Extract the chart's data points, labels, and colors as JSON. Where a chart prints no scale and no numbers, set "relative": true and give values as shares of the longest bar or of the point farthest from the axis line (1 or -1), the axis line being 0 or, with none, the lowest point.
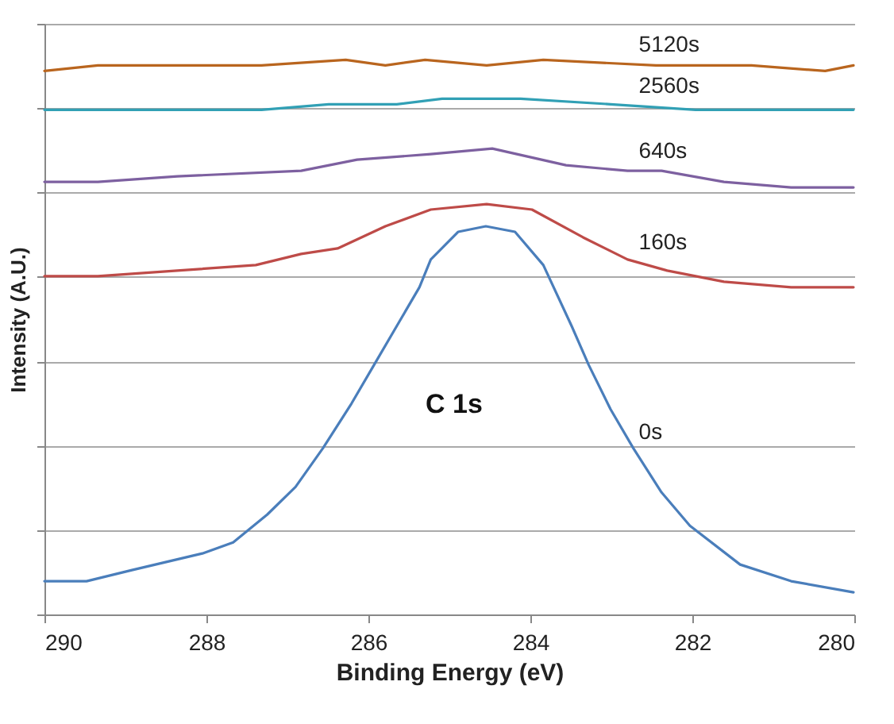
{
  "chart_data": {
    "type": "line",
    "xlabel": "Binding Energy (eV)",
    "ylabel": "Intensity (A.U.)",
    "relative": true,
    "xlim": [
      290,
      280
    ],
    "xticks": [
      290,
      288,
      286,
      284,
      282,
      280
    ],
    "grid": "y",
    "marker": "none",
    "line_style": "solid",
    "annotations": [
      "C 1s"
    ],
    "series": [
      {
        "name": "0s",
        "color": "#4a7ebb",
        "x": [
          290,
          289.48,
          288.92,
          288.05,
          287.67,
          287.25,
          286.9,
          286.56,
          286.21,
          285.93,
          285.65,
          285.37,
          285.23,
          284.89,
          284.55,
          284.19,
          283.84,
          283.49,
          283.28,
          283.01,
          282.73,
          282.38,
          282.03,
          281.41,
          280.78,
          280.01
        ],
        "values": [
          0.06,
          0.06,
          0.08,
          0.11,
          0.13,
          0.18,
          0.23,
          0.3,
          0.38,
          0.45,
          0.52,
          0.59,
          0.64,
          0.69,
          0.7,
          0.69,
          0.63,
          0.52,
          0.45,
          0.37,
          0.3,
          0.22,
          0.16,
          0.09,
          0.06,
          0.04
        ]
      },
      {
        "name": "160s",
        "color": "#be4b48",
        "x": [
          290,
          289.34,
          288.36,
          287.39,
          286.83,
          286.38,
          285.79,
          285.23,
          284.54,
          283.98,
          283.35,
          282.8,
          282.31,
          281.61,
          280.78,
          280.01
        ],
        "values": [
          0.61,
          0.61,
          0.62,
          0.63,
          0.65,
          0.66,
          0.7,
          0.73,
          0.74,
          0.73,
          0.68,
          0.64,
          0.62,
          0.6,
          0.59,
          0.59
        ]
      },
      {
        "name": "640s",
        "color": "#7d60a0",
        "x": [
          290,
          289.34,
          288.36,
          286.83,
          286.14,
          285.23,
          284.47,
          283.56,
          282.8,
          282.38,
          281.61,
          280.78,
          280.01
        ],
        "values": [
          0.78,
          0.78,
          0.79,
          0.8,
          0.82,
          0.83,
          0.84,
          0.81,
          0.8,
          0.8,
          0.78,
          0.77,
          0.77
        ]
      },
      {
        "name": "2560s",
        "color": "#31a0b5",
        "x": [
          290,
          289.2,
          288.36,
          287.32,
          286.49,
          285.65,
          285.09,
          284.12,
          283.01,
          281.96,
          280.01
        ],
        "values": [
          0.91,
          0.91,
          0.91,
          0.91,
          0.92,
          0.92,
          0.93,
          0.93,
          0.92,
          0.91,
          0.91
        ]
      },
      {
        "name": "5120s",
        "color": "#b9651e",
        "x": [
          290,
          289.34,
          288.57,
          287.81,
          287.32,
          286.28,
          285.79,
          285.3,
          284.54,
          283.84,
          282.45,
          281.27,
          280.36,
          280.01
        ],
        "values": [
          0.98,
          0.99,
          0.99,
          0.99,
          0.99,
          1.0,
          0.99,
          1.0,
          0.99,
          1.0,
          0.99,
          0.99,
          0.98,
          0.99
        ]
      }
    ]
  }
}
